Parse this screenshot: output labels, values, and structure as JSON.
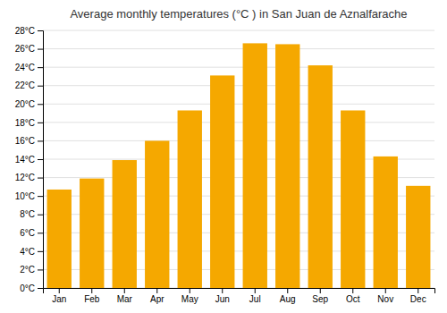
{
  "chart_data": {
    "type": "bar",
    "title": "Average monthly temperatures (°C ) in San Juan de Aznalfarache",
    "categories": [
      "Jan",
      "Feb",
      "Mar",
      "Apr",
      "May",
      "Jun",
      "Jul",
      "Aug",
      "Sep",
      "Oct",
      "Nov",
      "Dec"
    ],
    "values": [
      10.7,
      11.9,
      13.9,
      16.0,
      19.3,
      23.1,
      26.6,
      26.5,
      24.2,
      19.3,
      14.3,
      11.1
    ],
    "color": "#F5A800",
    "ylim": [
      0,
      28
    ],
    "yticks": [
      {
        "value": 0,
        "label": "0°C"
      },
      {
        "value": 2,
        "label": "2°C"
      },
      {
        "value": 4,
        "label": "4°C"
      },
      {
        "value": 6,
        "label": "6°C"
      },
      {
        "value": 8,
        "label": "8°C"
      },
      {
        "value": 10,
        "label": "10°C"
      },
      {
        "value": 12,
        "label": "12°C"
      },
      {
        "value": 14,
        "label": "14°C"
      },
      {
        "value": 16,
        "label": "16°C"
      },
      {
        "value": 18,
        "label": "18°C"
      },
      {
        "value": 20,
        "label": "20°C"
      },
      {
        "value": 22,
        "label": "22°C"
      },
      {
        "value": 24,
        "label": "24°C"
      },
      {
        "value": 26,
        "label": "26°C"
      },
      {
        "value": 28,
        "label": "28°C"
      }
    ],
    "grid": true
  }
}
